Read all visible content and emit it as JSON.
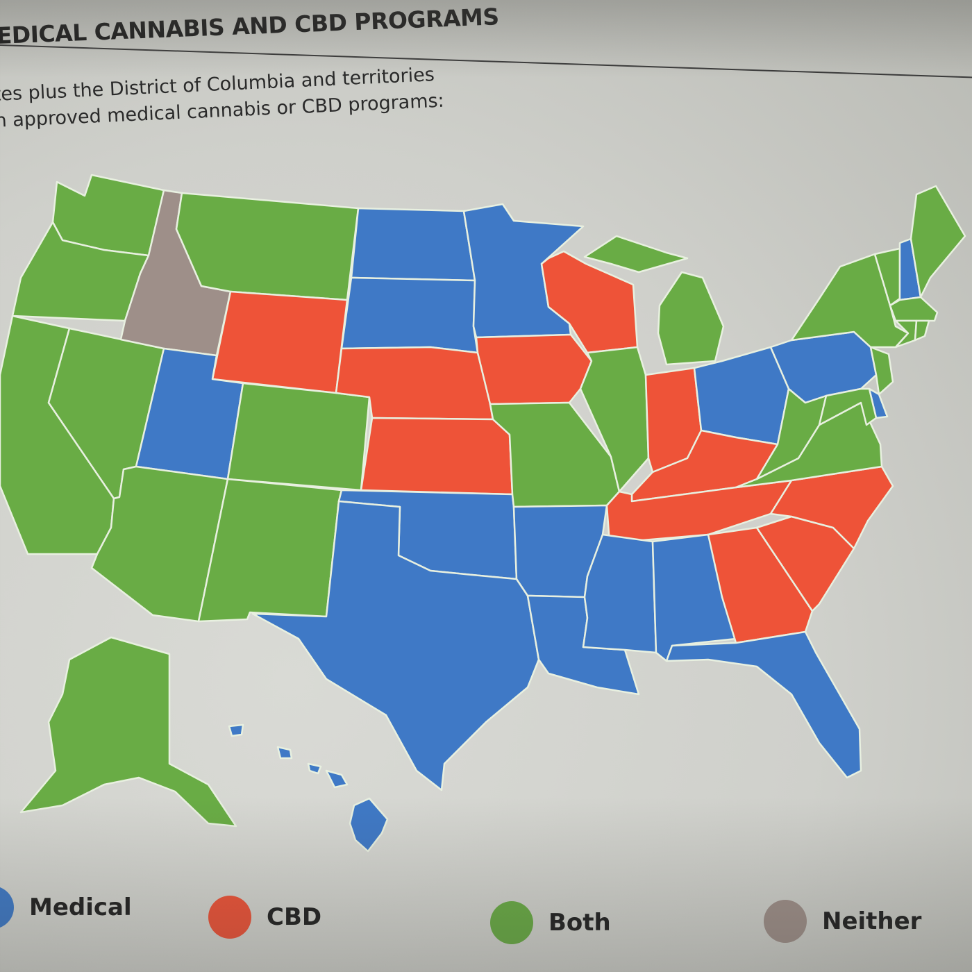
{
  "title": "EDICAL CANNABIS AND CBD PROGRAMS",
  "subtitle_lines": [
    "tes plus the District of Columbia and territories",
    "h approved medical cannabis or CBD programs:"
  ],
  "colors": {
    "medical": "#3f79c6",
    "cbd": "#ee5338",
    "both": "#69ac45",
    "neither": "#9e8f89",
    "border": "#e8f0e0"
  },
  "legend": {
    "medical": "Medical",
    "cbd": "CBD",
    "both": "Both",
    "neither": "Neither"
  },
  "regions": [
    {
      "name": "Washington",
      "category": "both"
    },
    {
      "name": "Oregon",
      "category": "both"
    },
    {
      "name": "California",
      "category": "both"
    },
    {
      "name": "Nevada",
      "category": "both"
    },
    {
      "name": "Idaho",
      "category": "neither"
    },
    {
      "name": "Montana",
      "category": "both"
    },
    {
      "name": "Wyoming",
      "category": "cbd"
    },
    {
      "name": "Utah",
      "category": "medical"
    },
    {
      "name": "Colorado",
      "category": "both"
    },
    {
      "name": "Arizona",
      "category": "both"
    },
    {
      "name": "New Mexico",
      "category": "both"
    },
    {
      "name": "North Dakota",
      "category": "medical"
    },
    {
      "name": "South Dakota",
      "category": "medical"
    },
    {
      "name": "Nebraska",
      "category": "cbd"
    },
    {
      "name": "Kansas",
      "category": "cbd"
    },
    {
      "name": "Oklahoma",
      "category": "medical"
    },
    {
      "name": "Texas",
      "category": "medical"
    },
    {
      "name": "Minnesota",
      "category": "medical"
    },
    {
      "name": "Iowa",
      "category": "cbd"
    },
    {
      "name": "Missouri",
      "category": "both"
    },
    {
      "name": "Arkansas",
      "category": "medical"
    },
    {
      "name": "Louisiana",
      "category": "medical"
    },
    {
      "name": "Wisconsin",
      "category": "cbd"
    },
    {
      "name": "Illinois",
      "category": "both"
    },
    {
      "name": "Michigan",
      "category": "both"
    },
    {
      "name": "Indiana",
      "category": "cbd"
    },
    {
      "name": "Kentucky",
      "category": "cbd"
    },
    {
      "name": "Tennessee",
      "category": "cbd"
    },
    {
      "name": "Mississippi",
      "category": "medical"
    },
    {
      "name": "Alabama",
      "category": "medical"
    },
    {
      "name": "Georgia",
      "category": "cbd"
    },
    {
      "name": "Florida",
      "category": "medical"
    },
    {
      "name": "South Carolina",
      "category": "cbd"
    },
    {
      "name": "North Carolina",
      "category": "cbd"
    },
    {
      "name": "Virginia",
      "category": "both"
    },
    {
      "name": "West Virginia",
      "category": "both"
    },
    {
      "name": "Ohio",
      "category": "medical"
    },
    {
      "name": "Pennsylvania",
      "category": "medical"
    },
    {
      "name": "New York",
      "category": "both"
    },
    {
      "name": "Vermont",
      "category": "both"
    },
    {
      "name": "New Hampshire",
      "category": "medical"
    },
    {
      "name": "Maine",
      "category": "both"
    },
    {
      "name": "Massachusetts",
      "category": "both"
    },
    {
      "name": "Connecticut",
      "category": "both"
    },
    {
      "name": "Rhode Island",
      "category": "both"
    },
    {
      "name": "New Jersey",
      "category": "both"
    },
    {
      "name": "Delaware",
      "category": "medical"
    },
    {
      "name": "Maryland",
      "category": "both"
    },
    {
      "name": "Alaska",
      "category": "both"
    },
    {
      "name": "Hawaii",
      "category": "medical"
    }
  ]
}
